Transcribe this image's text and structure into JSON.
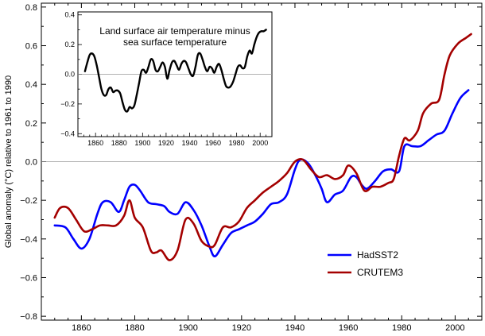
{
  "chart_data": [
    {
      "type": "line",
      "xlabel": "",
      "ylabel": "Global anomaly (°C) relative to 1961 to 1990",
      "xlim": [
        1845,
        2010
      ],
      "ylim": [
        -0.82,
        0.82
      ],
      "x_ticks": [
        1860,
        1880,
        1900,
        1920,
        1940,
        1960,
        1980,
        2000
      ],
      "y_ticks": [
        -0.8,
        -0.6,
        -0.4,
        -0.2,
        0.0,
        0.2,
        0.4,
        0.6,
        0.8
      ],
      "x_tick_labels": [
        "1860",
        "1880",
        "1900",
        "1920",
        "1940",
        "1960",
        "1980",
        "2000"
      ],
      "y_tick_labels": [
        "−0.8",
        "−0.6",
        "−0.4",
        "−0.2",
        "0.0",
        "0.2",
        "0.4",
        "0.6",
        "0.8"
      ],
      "zero_line": true,
      "legend_position": "bottom-right",
      "series": [
        {
          "name": "HadSST2",
          "color": "#0000ff",
          "x": [
            1850,
            1854,
            1857,
            1860,
            1863,
            1866,
            1868,
            1871,
            1874,
            1876,
            1878,
            1880,
            1882,
            1885,
            1888,
            1891,
            1893,
            1896,
            1899,
            1902,
            1905,
            1908,
            1910,
            1913,
            1916,
            1919,
            1922,
            1925,
            1928,
            1931,
            1934,
            1937,
            1940,
            1942,
            1945,
            1948,
            1950,
            1952,
            1955,
            1958,
            1961,
            1963,
            1965,
            1967,
            1970,
            1973,
            1976,
            1979,
            1981,
            1984,
            1987,
            1990,
            1993,
            1996,
            1999,
            2002,
            2005
          ],
          "y": [
            -0.33,
            -0.34,
            -0.4,
            -0.45,
            -0.4,
            -0.27,
            -0.21,
            -0.21,
            -0.26,
            -0.2,
            -0.13,
            -0.12,
            -0.15,
            -0.21,
            -0.22,
            -0.23,
            -0.26,
            -0.27,
            -0.21,
            -0.25,
            -0.33,
            -0.44,
            -0.49,
            -0.43,
            -0.37,
            -0.35,
            -0.33,
            -0.31,
            -0.27,
            -0.22,
            -0.21,
            -0.17,
            -0.04,
            0.01,
            -0.01,
            -0.08,
            -0.14,
            -0.21,
            -0.17,
            -0.15,
            -0.08,
            -0.08,
            -0.12,
            -0.14,
            -0.1,
            -0.05,
            -0.04,
            -0.05,
            0.08,
            0.08,
            0.08,
            0.11,
            0.14,
            0.16,
            0.25,
            0.33,
            0.37
          ]
        },
        {
          "name": "CRUTEM3",
          "color": "#a40000",
          "x": [
            1850,
            1852,
            1855,
            1858,
            1861,
            1864,
            1867,
            1870,
            1873,
            1876,
            1878,
            1880,
            1883,
            1886,
            1888,
            1890,
            1893,
            1896,
            1899,
            1902,
            1905,
            1908,
            1910,
            1913,
            1916,
            1919,
            1922,
            1925,
            1928,
            1931,
            1934,
            1937,
            1940,
            1943,
            1946,
            1949,
            1952,
            1955,
            1958,
            1960,
            1963,
            1966,
            1969,
            1972,
            1975,
            1977,
            1979,
            1981,
            1983,
            1986,
            1988,
            1991,
            1994,
            1996,
            1998,
            2001,
            2004,
            2006
          ],
          "y": [
            -0.29,
            -0.24,
            -0.24,
            -0.3,
            -0.36,
            -0.35,
            -0.33,
            -0.33,
            -0.33,
            -0.28,
            -0.2,
            -0.29,
            -0.34,
            -0.46,
            -0.47,
            -0.46,
            -0.51,
            -0.46,
            -0.3,
            -0.32,
            -0.41,
            -0.44,
            -0.43,
            -0.34,
            -0.34,
            -0.31,
            -0.24,
            -0.2,
            -0.16,
            -0.13,
            -0.1,
            -0.06,
            0.0,
            0.01,
            -0.04,
            -0.08,
            -0.07,
            -0.09,
            -0.07,
            -0.02,
            -0.06,
            -0.15,
            -0.13,
            -0.13,
            -0.11,
            -0.09,
            0.03,
            0.12,
            0.11,
            0.16,
            0.25,
            0.3,
            0.32,
            0.45,
            0.55,
            0.61,
            0.64,
            0.66
          ]
        }
      ]
    },
    {
      "type": "line",
      "title": "Land surface air temperature minus sea surface temperature",
      "title_lines": [
        "Land surface air temperature minus",
        "sea surface temperature"
      ],
      "xlim": [
        1845,
        2010
      ],
      "ylim": [
        -0.42,
        0.42
      ],
      "x_ticks": [
        1860,
        1880,
        1900,
        1920,
        1940,
        1960,
        1980,
        2000
      ],
      "y_ticks": [
        -0.4,
        -0.2,
        0.0,
        0.2,
        0.4
      ],
      "x_tick_labels": [
        "1860",
        "1880",
        "1900",
        "1920",
        "1940",
        "1960",
        "1980",
        "2000"
      ],
      "y_tick_labels": [
        "−0.4",
        "−0.2",
        "0.0",
        "0.2",
        "0.4"
      ],
      "zero_line": true,
      "series": [
        {
          "color": "#000000",
          "x": [
            1851,
            1853,
            1855,
            1857,
            1859,
            1861,
            1863,
            1865,
            1867,
            1869,
            1871,
            1873,
            1875,
            1877,
            1879,
            1881,
            1883,
            1885,
            1887,
            1889,
            1891,
            1893,
            1895,
            1897,
            1899,
            1901,
            1903,
            1905,
            1907,
            1909,
            1911,
            1913,
            1915,
            1917,
            1919,
            1921,
            1923,
            1925,
            1927,
            1929,
            1931,
            1933,
            1935,
            1937,
            1939,
            1941,
            1943,
            1945,
            1947,
            1949,
            1951,
            1953,
            1955,
            1957,
            1959,
            1961,
            1963,
            1965,
            1967,
            1969,
            1971,
            1973,
            1975,
            1977,
            1979,
            1981,
            1983,
            1985,
            1987,
            1989,
            1991,
            1993,
            1995,
            1997,
            1999,
            2001,
            2003,
            2005
          ],
          "y": [
            0.02,
            0.08,
            0.13,
            0.14,
            0.12,
            0.06,
            -0.02,
            -0.1,
            -0.14,
            -0.14,
            -0.1,
            -0.09,
            -0.12,
            -0.11,
            -0.11,
            -0.13,
            -0.19,
            -0.24,
            -0.25,
            -0.22,
            -0.23,
            -0.21,
            -0.14,
            -0.06,
            0.02,
            0.03,
            0.01,
            0.05,
            0.1,
            0.09,
            0.03,
            0.02,
            0.05,
            0.08,
            0.05,
            -0.03,
            0.03,
            0.08,
            0.09,
            0.06,
            0.03,
            0.07,
            0.09,
            0.08,
            0.04,
            0.0,
            -0.01,
            0.05,
            0.13,
            0.14,
            0.1,
            0.05,
            0.02,
            0.05,
            0.04,
            0.01,
            0.05,
            0.07,
            0.03,
            -0.03,
            -0.08,
            -0.09,
            -0.08,
            -0.05,
            0.0,
            0.05,
            0.06,
            0.04,
            0.05,
            0.12,
            0.16,
            0.14,
            0.2,
            0.25,
            0.28,
            0.29,
            0.29,
            0.3
          ]
        }
      ]
    }
  ]
}
